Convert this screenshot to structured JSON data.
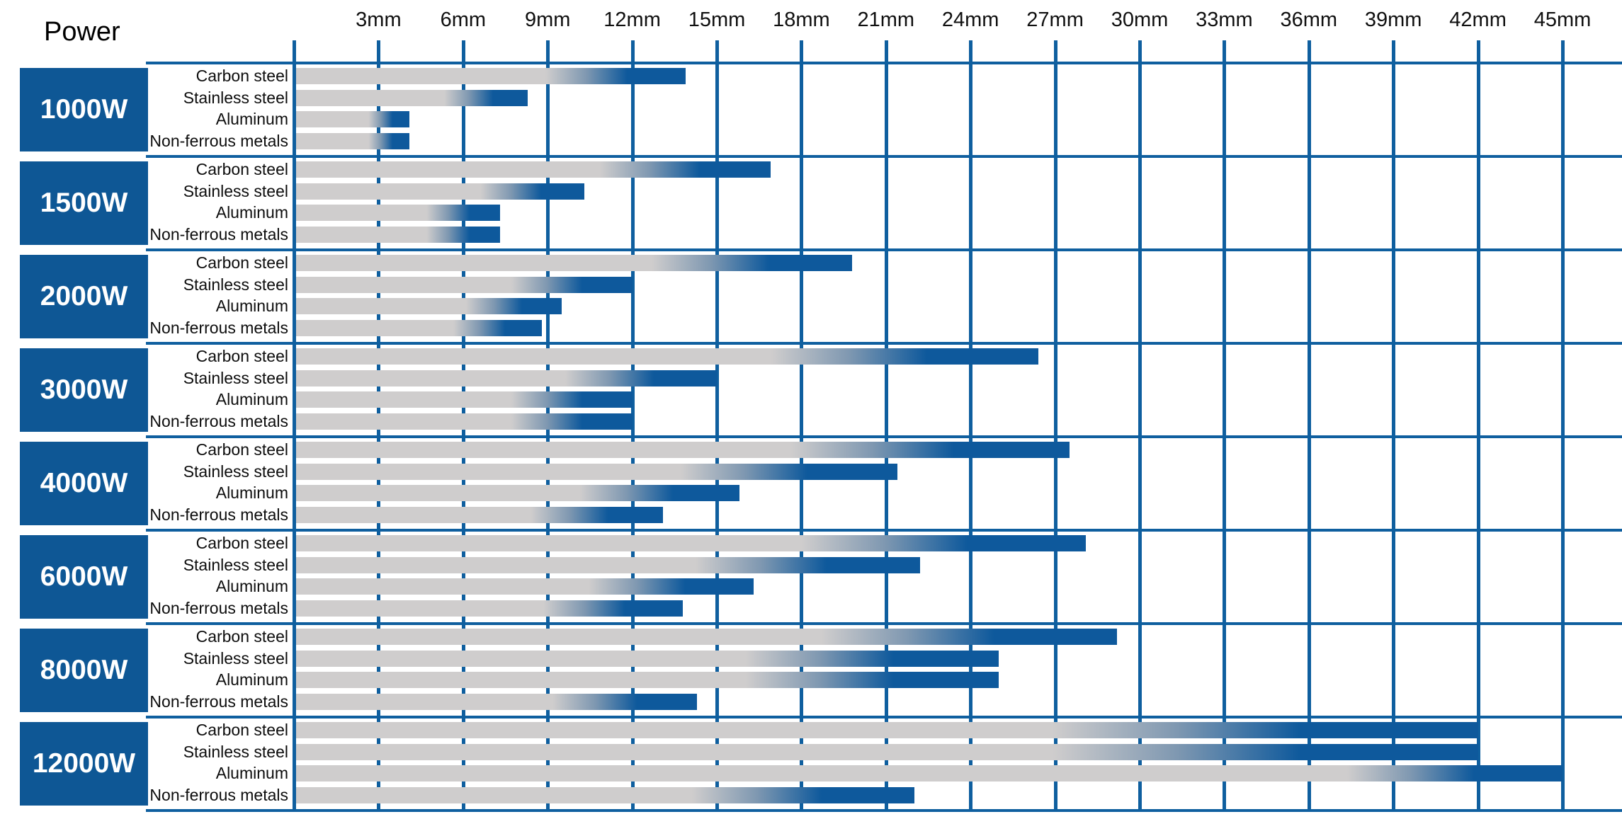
{
  "title": "Power",
  "axis": {
    "unit": "mm",
    "tick_labels": [
      "3mm",
      "6mm",
      "9mm",
      "12mm",
      "15mm",
      "18mm",
      "21mm",
      "24mm",
      "27mm",
      "30mm",
      "33mm",
      "36mm",
      "39mm",
      "42mm",
      "45mm"
    ],
    "tick_step_mm": 3,
    "max_mm": 45
  },
  "materials": [
    "Carbon steel",
    "Stainless steel",
    "Aluminum",
    "Non-ferrous metals"
  ],
  "chart_data": {
    "type": "bar",
    "orientation": "horizontal",
    "title": "Power",
    "xlabel": "",
    "ylabel": "Power",
    "xlim": [
      0,
      45
    ],
    "grid": true,
    "legend": "none",
    "categories": [
      "Carbon steel",
      "Stainless steel",
      "Aluminum",
      "Non-ferrous metals"
    ],
    "unit": "mm",
    "series": [
      {
        "name": "1000W",
        "values": [
          13.9,
          8.3,
          4.1,
          4.1
        ]
      },
      {
        "name": "1500W",
        "values": [
          16.9,
          10.3,
          7.3,
          7.3
        ]
      },
      {
        "name": "2000W",
        "values": [
          19.8,
          12.0,
          9.5,
          8.8
        ]
      },
      {
        "name": "3000W",
        "values": [
          26.4,
          15.0,
          12.0,
          12.0
        ]
      },
      {
        "name": "4000W",
        "values": [
          27.5,
          21.4,
          15.8,
          13.1
        ]
      },
      {
        "name": "6000W",
        "values": [
          28.1,
          22.2,
          16.3,
          13.8
        ]
      },
      {
        "name": "8000W",
        "values": [
          29.2,
          25.0,
          25.0,
          14.3
        ]
      },
      {
        "name": "12000W",
        "values": [
          42.0,
          42.0,
          45.0,
          22.0
        ]
      }
    ]
  },
  "colors": {
    "deep_blue": "#0e5795",
    "grid_blue": "#0f5f9f",
    "bar_gray": "#cfcdcd",
    "bar_mid": "#7f98b1",
    "bar_blue_tip": "#0e599c",
    "background": "#ffffff",
    "text": "#0d0d0d"
  },
  "style_hints": {
    "bar_gray_stop_pct": 64,
    "bar_blue_start_pct": 85,
    "gradient_overrides": [
      {
        "series": "12000W",
        "material": "Aluminum",
        "gray_stop_pct": 83,
        "blue_start_pct": 93
      }
    ]
  }
}
